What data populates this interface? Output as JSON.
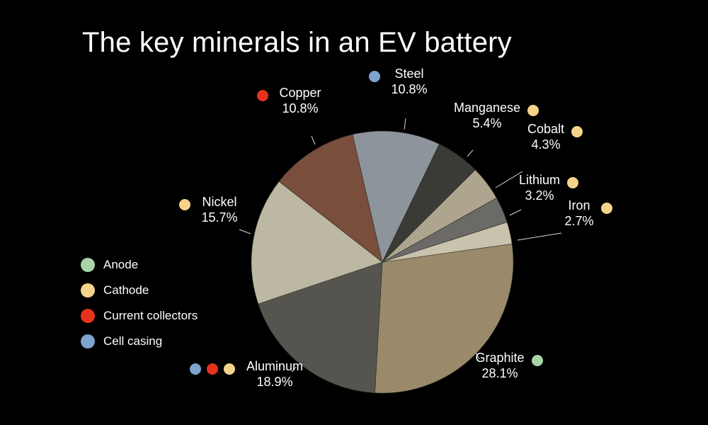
{
  "chart_data": {
    "type": "pie",
    "title": "The key minerals in an EV battery",
    "unit": "%",
    "slices": [
      {
        "label": "Graphite",
        "value": 28.1,
        "display": "28.1%",
        "color": "#9a8a6a",
        "roles": [
          "anode"
        ]
      },
      {
        "label": "Aluminum",
        "value": 18.9,
        "display": "18.9%",
        "color": "#55544f",
        "roles": [
          "cell_casing",
          "current_collectors",
          "cathode"
        ]
      },
      {
        "label": "Nickel",
        "value": 15.7,
        "display": "15.7%",
        "color": "#bdb8a2",
        "roles": [
          "cathode"
        ]
      },
      {
        "label": "Copper",
        "value": 10.8,
        "display": "10.8%",
        "color": "#7a4e3c",
        "roles": [
          "current_collectors"
        ]
      },
      {
        "label": "Steel",
        "value": 10.8,
        "display": "10.8%",
        "color": "#8e949b",
        "roles": [
          "cell_casing"
        ]
      },
      {
        "label": "Manganese",
        "value": 5.4,
        "display": "5.4%",
        "color": "#393b34",
        "roles": [
          "cathode"
        ]
      },
      {
        "label": "Cobalt",
        "value": 4.3,
        "display": "4.3%",
        "color": "#aea58e",
        "roles": [
          "cathode"
        ]
      },
      {
        "label": "Lithium",
        "value": 3.2,
        "display": "3.2%",
        "color": "#6c6a66",
        "roles": [
          "cathode"
        ]
      },
      {
        "label": "Iron",
        "value": 2.7,
        "display": "2.7%",
        "color": "#c9c2ad",
        "roles": [
          "cathode"
        ]
      }
    ],
    "legend": [
      {
        "key": "anode",
        "label": "Anode",
        "color": "#a8d5a8"
      },
      {
        "key": "cathode",
        "label": "Cathode",
        "color": "#f6d38a"
      },
      {
        "key": "current_collectors",
        "label": "Current collectors",
        "color": "#e8321e"
      },
      {
        "key": "cell_casing",
        "label": "Cell casing",
        "color": "#7ea3cc"
      }
    ],
    "legend_position": "left"
  }
}
